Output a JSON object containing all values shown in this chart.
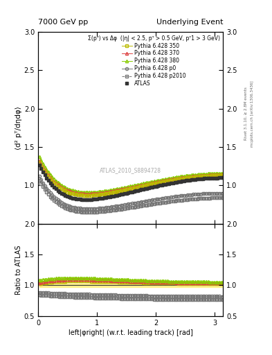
{
  "title_left": "7000 GeV pp",
  "title_right": "Underlying Event",
  "annotation": "ATLAS_2010_S8894728",
  "xlabel": "left|φright| (w.r.t. leading track) [rad]",
  "ylabel_main": "⟨d² pᵀ/dηdφ⟩",
  "ylabel_ratio": "Ratio to ATLAS",
  "right_label_top": "Rivet 3.1.10, ≥ 2.8M events",
  "right_label_bot": "mcplots.cern.ch [arXiv:1306.3436]",
  "legend_title": "Σ(pᵀ) vs Δφ  (|η| < 2.5, pᵀ > 0.5 GeV, pᵀ1 > 3 GeV)",
  "ylim_main": [
    0.5,
    3.0
  ],
  "ylim_ratio": [
    0.5,
    2.0
  ],
  "xlim": [
    0,
    3.14159
  ],
  "yticks_main": [
    1.0,
    1.5,
    2.0,
    2.5,
    3.0
  ],
  "yticks_ratio": [
    0.5,
    1.0,
    1.5,
    2.0
  ],
  "xticks": [
    0,
    1,
    2,
    3
  ],
  "background_color": "#ffffff",
  "series": [
    {
      "name": "ATLAS",
      "color": "#333333",
      "marker": "s",
      "markersize": 3.5,
      "linestyle": "none",
      "filled": true,
      "is_data": true
    },
    {
      "name": "Pythia 6.428 350",
      "color": "#bbbb00",
      "marker": "s",
      "markersize": 3,
      "linestyle": "-",
      "filled": false
    },
    {
      "name": "Pythia 6.428 370",
      "color": "#dd4444",
      "marker": "^",
      "markersize": 3,
      "linestyle": "-",
      "filled": false
    },
    {
      "name": "Pythia 6.428 380",
      "color": "#88cc00",
      "marker": "^",
      "markersize": 3,
      "linestyle": "-",
      "filled": false
    },
    {
      "name": "Pythia 6.428 p0",
      "color": "#777777",
      "marker": "o",
      "markersize": 3,
      "linestyle": "-",
      "filled": false
    },
    {
      "name": "Pythia 6.428 p2010",
      "color": "#777777",
      "marker": "s",
      "markersize": 3,
      "linestyle": "--",
      "filled": false
    }
  ]
}
